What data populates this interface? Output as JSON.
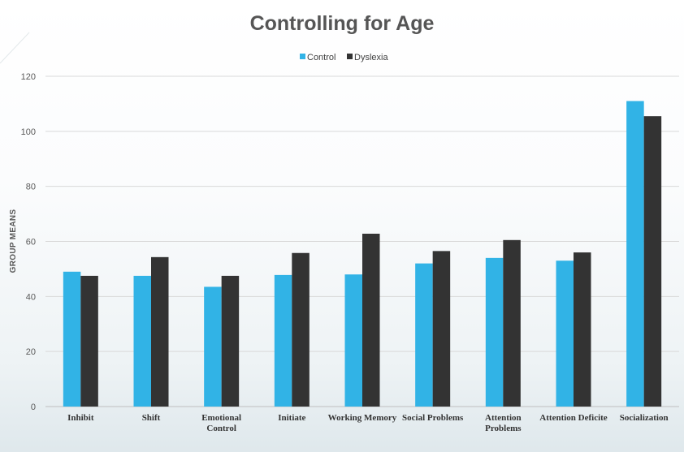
{
  "chart_data": {
    "type": "bar",
    "title": "Controlling for Age",
    "ylabel": "GROUP MEANS",
    "xlabel": "",
    "ylim": [
      0,
      120
    ],
    "yticks": [
      0,
      20,
      40,
      60,
      80,
      100,
      120
    ],
    "grid": true,
    "legend_position": "top",
    "categories": [
      [
        "Inhibit"
      ],
      [
        "Shift"
      ],
      [
        "Emotional",
        "Control"
      ],
      [
        "Initiate"
      ],
      [
        "Working Memory"
      ],
      [
        "Social Problems"
      ],
      [
        "Attention",
        "Problems"
      ],
      [
        "Attention Deficite"
      ],
      [
        "Socialization"
      ]
    ],
    "series": [
      {
        "name": "Control",
        "color": "#31b3e6",
        "values": [
          49,
          47.5,
          43.5,
          47.8,
          48,
          52,
          54,
          53,
          111
        ]
      },
      {
        "name": "Dyslexia",
        "color": "#333333",
        "values": [
          47.5,
          54.3,
          47.5,
          55.8,
          62.8,
          56.5,
          60.5,
          56,
          105.5
        ]
      }
    ]
  }
}
